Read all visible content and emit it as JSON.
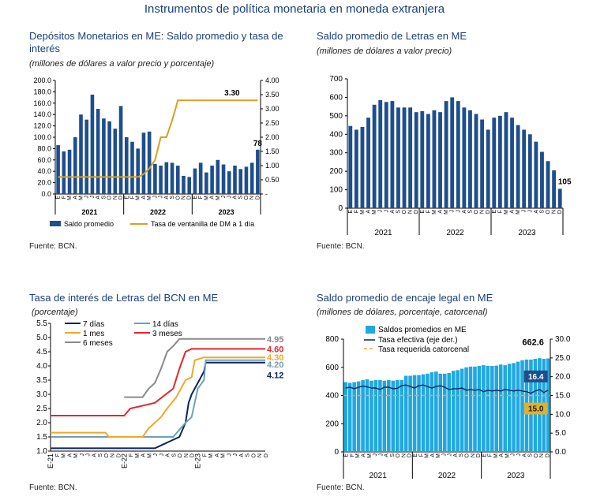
{
  "page": {
    "title": "Instrumentos de política monetaria en moneda extranjera"
  },
  "colors": {
    "navy": "#1f4e8c",
    "gold": "#d7a021",
    "cyan": "#20a8e0",
    "red": "#e0282e",
    "orange": "#f0a825",
    "gray": "#8a8a8a",
    "dark_navy": "#0b2559",
    "teal": "#6ea0be"
  },
  "panels": {
    "tl": {
      "title": "Depósitos Monetarios en ME: Saldo promedio y tasa de interés",
      "subtitle": "(millones de dólares a valor precio y porcentaje)",
      "source": "Fuente: BCN."
    },
    "tr": {
      "title": "Saldo promedio de Letras en ME",
      "subtitle": "(millones de dólares a valor precio)",
      "source": "Fuente: BCN."
    },
    "bl": {
      "title": "Tasa de interés de Letras del BCN en ME",
      "subtitle": "(porcentaje)",
      "source": "Fuente: BCN."
    },
    "br": {
      "title": "Saldo promedio de encaje legal en ME",
      "subtitle": "(millones de dólares, porcentaje, catorcenal)",
      "source": "Fuente: BCN."
    }
  },
  "chart_data": [
    {
      "id": "tl",
      "type": "bar",
      "title": "Depósitos Monetarios en ME: Saldo promedio y tasa de interés",
      "subtitle": "(millones de dólares a valor precio y porcentaje)",
      "x": [
        "2021-01",
        "2021-02",
        "2021-03",
        "2021-04",
        "2021-05",
        "2021-06",
        "2021-07",
        "2021-08",
        "2021-09",
        "2021-10",
        "2021-11",
        "2021-12",
        "2022-01",
        "2022-02",
        "2022-03",
        "2022-04",
        "2022-05",
        "2022-06",
        "2022-07",
        "2022-08",
        "2022-09",
        "2022-10",
        "2022-11",
        "2022-12",
        "2023-01",
        "2023-02",
        "2023-03",
        "2023-04",
        "2023-05",
        "2023-06",
        "2023-07",
        "2023-08",
        "2023-09",
        "2023-10",
        "2023-11",
        "2023-12"
      ],
      "month_letters": [
        "E",
        "F",
        "M",
        "A",
        "M",
        "J",
        "J",
        "A",
        "S",
        "O",
        "N",
        "D",
        "E",
        "F",
        "M",
        "A",
        "M",
        "J",
        "J",
        "A",
        "S",
        "O",
        "N",
        "D",
        "E",
        "F",
        "M",
        "A",
        "M",
        "J",
        "J",
        "A",
        "S",
        "O",
        "N",
        "D"
      ],
      "years": [
        "2021",
        "2022",
        "2023"
      ],
      "ylim": [
        0,
        200
      ],
      "y2lim": [
        0,
        4
      ],
      "y_ticks": [
        "0.0",
        "20.0",
        "40.0",
        "60.0",
        "80.0",
        "100.0",
        "120.0",
        "140.0",
        "160.0",
        "180.0",
        "200.0"
      ],
      "y2_ticks": [
        "-",
        "0.50",
        "1.00",
        "1.50",
        "2.00",
        "2.50",
        "3.00",
        "3.50",
        "4.00"
      ],
      "series": [
        {
          "name": "Saldo promedio",
          "axis": "left",
          "kind": "bar",
          "values": [
            86,
            75,
            78,
            100,
            140,
            131,
            175,
            150,
            133,
            128,
            115,
            155,
            100,
            92,
            80,
            108,
            110,
            53,
            50,
            56,
            55,
            50,
            32,
            30,
            45,
            55,
            38,
            50,
            60,
            52,
            40,
            50,
            44,
            48,
            55,
            78
          ]
        },
        {
          "name": "Tasa de ventanilla de DM a 1 día",
          "axis": "right",
          "kind": "line",
          "values": [
            0.6,
            0.6,
            0.6,
            0.6,
            0.6,
            0.6,
            0.6,
            0.6,
            0.6,
            0.6,
            0.6,
            0.6,
            0.6,
            0.6,
            0.6,
            0.7,
            0.9,
            1.2,
            2.0,
            2.0,
            2.6,
            3.3,
            3.3,
            3.3,
            3.3,
            3.3,
            3.3,
            3.3,
            3.3,
            3.3,
            3.3,
            3.3,
            3.3,
            3.3,
            3.3,
            3.3
          ]
        }
      ],
      "annotations": [
        "3.30",
        "78"
      ]
    },
    {
      "id": "tr",
      "type": "bar",
      "title": "Saldo promedio de Letras en ME",
      "subtitle": "(millones de dólares a valor precio)",
      "x": [
        "2021-01",
        "2021-02",
        "2021-03",
        "2021-04",
        "2021-05",
        "2021-06",
        "2021-07",
        "2021-08",
        "2021-09",
        "2021-10",
        "2021-11",
        "2021-12",
        "2022-01",
        "2022-02",
        "2022-03",
        "2022-04",
        "2022-05",
        "2022-06",
        "2022-07",
        "2022-08",
        "2022-09",
        "2022-10",
        "2022-11",
        "2022-12",
        "2023-01",
        "2023-02",
        "2023-03",
        "2023-04",
        "2023-05",
        "2023-06",
        "2023-07",
        "2023-08",
        "2023-09",
        "2023-10",
        "2023-11",
        "2023-12"
      ],
      "month_letters": [
        "E",
        "F",
        "M",
        "A",
        "M",
        "J",
        "J",
        "A",
        "S",
        "O",
        "N",
        "D",
        "E",
        "F",
        "M",
        "A",
        "M",
        "J",
        "J",
        "A",
        "S",
        "O",
        "N",
        "D",
        "E",
        "F",
        "M",
        "A",
        "M",
        "J",
        "J",
        "A",
        "S",
        "O",
        "N",
        "D"
      ],
      "years": [
        "2021",
        "2022",
        "2023"
      ],
      "ylim": [
        0,
        700
      ],
      "y_ticks": [
        "0",
        "100",
        "200",
        "300",
        "400",
        "500",
        "600",
        "700"
      ],
      "series": [
        {
          "name": "Saldo promedio",
          "values": [
            445,
            425,
            440,
            490,
            560,
            585,
            575,
            580,
            545,
            545,
            545,
            520,
            525,
            510,
            530,
            520,
            580,
            600,
            580,
            545,
            530,
            510,
            480,
            425,
            490,
            500,
            520,
            490,
            450,
            425,
            400,
            360,
            305,
            255,
            205,
            105
          ]
        }
      ],
      "annotations": [
        "105"
      ]
    },
    {
      "id": "bl",
      "type": "line",
      "title": "Tasa de interés de Letras del BCN en ME",
      "subtitle": "(porcentaje)",
      "ylim": [
        1.0,
        5.5
      ],
      "y_ticks": [
        "1.0",
        "1.5",
        "2.0",
        "2.5",
        "3.0",
        "3.5",
        "4.0",
        "4.5",
        "5.0",
        "5.5"
      ],
      "x_labels": [
        "E-21",
        "E-22",
        "E-23"
      ],
      "x_letters": [
        "F",
        "M",
        "A",
        "M",
        "J",
        "J",
        "A",
        "S",
        "O",
        "N",
        "D",
        "F",
        "M",
        "A",
        "M",
        "J",
        "J",
        "A",
        "S",
        "O",
        "N",
        "D",
        "F",
        "M",
        "A",
        "M",
        "J",
        "J",
        "A",
        "S",
        "O",
        "N",
        "D"
      ],
      "series": [
        {
          "name": "7 días",
          "points": [
            [
              0,
              1.1
            ],
            [
              17,
              1.1
            ],
            [
              18,
              1.2
            ],
            [
              20,
              1.4
            ],
            [
              21,
              1.5
            ],
            [
              22,
              2.0
            ],
            [
              22.5,
              2.7
            ],
            [
              23,
              3.0
            ],
            [
              24,
              3.4
            ],
            [
              25,
              3.8
            ],
            [
              25.3,
              4.12
            ],
            [
              35,
              4.12
            ]
          ]
        },
        {
          "name": "14 días",
          "points": [
            [
              0,
              1.5
            ],
            [
              20,
              1.5
            ],
            [
              22,
              2.0
            ],
            [
              23,
              2.2
            ],
            [
              24,
              3.2
            ],
            [
              25,
              3.5
            ],
            [
              25.3,
              4.2
            ],
            [
              35,
              4.2
            ]
          ]
        },
        {
          "name": "1 mes",
          "points": [
            [
              0,
              1.65
            ],
            [
              9,
              1.65
            ],
            [
              9.5,
              1.5
            ],
            [
              15,
              1.5
            ],
            [
              16,
              1.8
            ],
            [
              18,
              2.2
            ],
            [
              19,
              2.5
            ],
            [
              20.5,
              2.9
            ],
            [
              22,
              3.5
            ],
            [
              23,
              3.6
            ],
            [
              23.5,
              4.2
            ],
            [
              25,
              4.3
            ],
            [
              35,
              4.3
            ]
          ]
        },
        {
          "name": "3 meses",
          "points": [
            [
              0,
              2.25
            ],
            [
              12,
              2.25
            ],
            [
              13,
              2.5
            ],
            [
              17,
              2.7
            ],
            [
              20,
              3.2
            ],
            [
              21,
              3.9
            ],
            [
              22,
              4.5
            ],
            [
              23,
              4.6
            ],
            [
              35,
              4.6
            ]
          ]
        },
        {
          "name": "6 meses",
          "points": [
            [
              12,
              2.9
            ],
            [
              15,
              2.9
            ],
            [
              16,
              3.2
            ],
            [
              17,
              3.4
            ],
            [
              18,
              3.9
            ],
            [
              19,
              4.5
            ],
            [
              20,
              4.7
            ],
            [
              21,
              4.95
            ],
            [
              35,
              4.95
            ]
          ]
        }
      ],
      "annotations": [
        "4.95",
        "4.60",
        "4.30",
        "4.20",
        "4.12"
      ]
    },
    {
      "id": "br",
      "type": "bar",
      "title": "Saldo promedio de encaje legal en ME",
      "subtitle": "(millones de dólares, porcentaje, catorcenal)",
      "years": [
        "2021",
        "2022",
        "2023"
      ],
      "month_letters": [
        "E",
        "F",
        "M",
        "A",
        "M",
        "J",
        "J",
        "A",
        "S",
        "O",
        "N",
        "D",
        "E",
        "F",
        "M",
        "A",
        "M",
        "J",
        "J",
        "A",
        "S",
        "O",
        "N",
        "D",
        "E",
        "F",
        "M",
        "A",
        "M",
        "J",
        "J",
        "A",
        "S",
        "O",
        "N",
        "D"
      ],
      "ylim": [
        0,
        800
      ],
      "y2lim": [
        0,
        30
      ],
      "y_ticks": [
        "0",
        "200",
        "400",
        "600",
        "800"
      ],
      "y2_ticks": [
        "0.0",
        "5.0",
        "10.0",
        "15.0",
        "20.0",
        "25.0",
        "30.0"
      ],
      "series": [
        {
          "name": "Saldos promedios en ME",
          "axis": "left",
          "kind": "bar",
          "values": [
            495,
            490,
            495,
            500,
            510,
            515,
            505,
            510,
            510,
            505,
            510,
            505,
            510,
            510,
            540,
            540,
            545,
            545,
            550,
            555,
            565,
            570,
            555,
            555,
            560,
            575,
            580,
            590,
            600,
            605,
            605,
            610,
            615,
            610,
            610,
            612,
            620,
            615,
            625,
            630,
            640,
            650,
            655,
            655,
            660,
            665,
            660,
            662.6
          ]
        },
        {
          "name": "Tasa efectiva (eje der.)",
          "axis": "right",
          "kind": "line",
          "values": [
            17.0,
            17.2,
            16.8,
            17.2,
            17.5,
            17.3,
            17.0,
            17.0,
            16.6,
            17.2,
            17.2,
            16.8,
            16.9,
            17.6,
            17.8,
            17.4,
            17.0,
            17.6,
            17.8,
            17.4,
            17.0,
            17.4,
            17.6,
            17.2,
            16.6,
            16.8,
            16.8,
            17.0,
            16.4,
            16.6,
            16.4,
            16.6,
            16.0,
            16.4,
            16.2,
            16.4,
            16.2,
            16.6,
            16.4,
            16.2,
            16.4,
            16.2,
            16.0,
            15.6,
            16.2,
            16.6,
            15.8,
            16.4
          ]
        },
        {
          "name": "Tasa requerida catorcenal",
          "axis": "right",
          "kind": "dashed",
          "values": [
            15.0,
            15.0
          ]
        }
      ],
      "annotations": [
        "662.6",
        "16.4",
        "15.0"
      ]
    }
  ]
}
